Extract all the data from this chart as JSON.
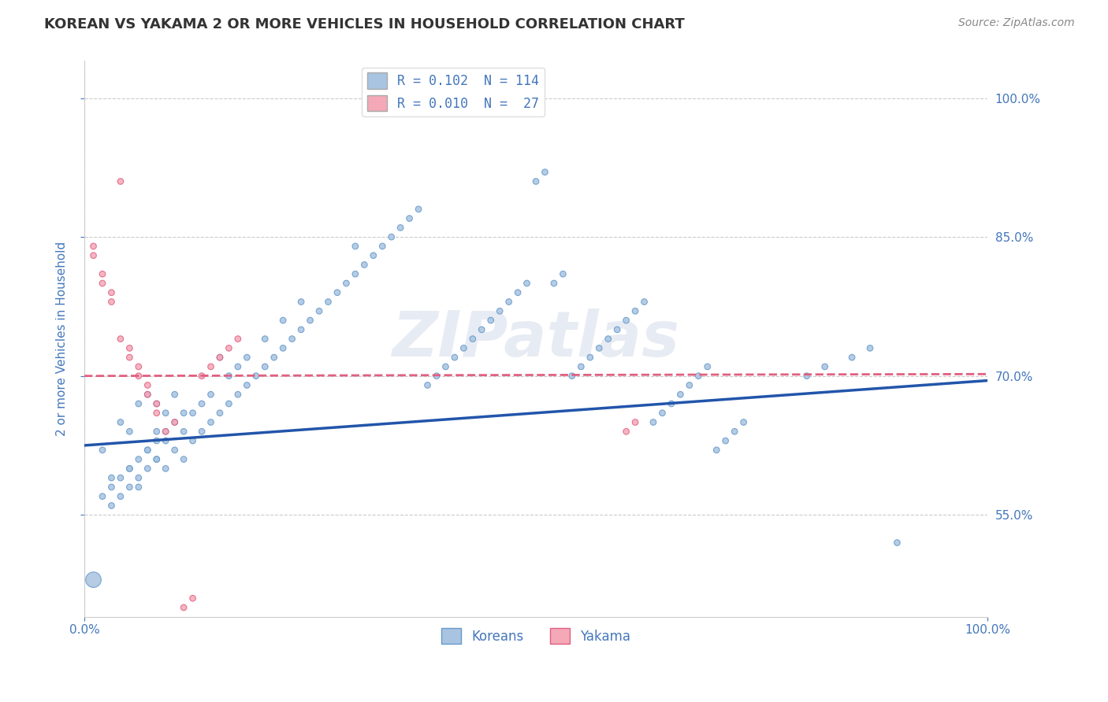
{
  "title": "KOREAN VS YAKAMA 2 OR MORE VEHICLES IN HOUSEHOLD CORRELATION CHART",
  "source": "Source: ZipAtlas.com",
  "ylabel": "2 or more Vehicles in Household",
  "xlim": [
    0.0,
    1.0
  ],
  "ylim": [
    0.44,
    1.04
  ],
  "yticks": [
    0.55,
    0.7,
    0.85,
    1.0
  ],
  "ytick_labels": [
    "55.0%",
    "70.0%",
    "85.0%",
    "100.0%"
  ],
  "legend_entries": [
    {
      "label": "R = 0.102  N = 114",
      "color": "#a8c4e0"
    },
    {
      "label": "R = 0.010  N =  27",
      "color": "#f4a8b8"
    }
  ],
  "watermark": "ZIPatlas",
  "korean_scatter": {
    "color": "#a8c4e0",
    "edge_color": "#6699cc",
    "x": [
      0.02,
      0.03,
      0.04,
      0.05,
      0.05,
      0.06,
      0.06,
      0.07,
      0.07,
      0.08,
      0.08,
      0.08,
      0.09,
      0.09,
      0.09,
      0.1,
      0.1,
      0.11,
      0.11,
      0.12,
      0.12,
      0.13,
      0.13,
      0.14,
      0.14,
      0.15,
      0.15,
      0.16,
      0.16,
      0.17,
      0.17,
      0.18,
      0.18,
      0.19,
      0.2,
      0.2,
      0.21,
      0.22,
      0.22,
      0.23,
      0.24,
      0.24,
      0.25,
      0.26,
      0.27,
      0.28,
      0.29,
      0.3,
      0.3,
      0.31,
      0.32,
      0.33,
      0.34,
      0.35,
      0.36,
      0.37,
      0.38,
      0.39,
      0.4,
      0.41,
      0.42,
      0.43,
      0.44,
      0.45,
      0.46,
      0.47,
      0.48,
      0.49,
      0.5,
      0.51,
      0.52,
      0.53,
      0.54,
      0.55,
      0.56,
      0.57,
      0.58,
      0.59,
      0.6,
      0.61,
      0.62,
      0.63,
      0.64,
      0.65,
      0.66,
      0.67,
      0.68,
      0.69,
      0.7,
      0.71,
      0.72,
      0.73,
      0.8,
      0.82,
      0.85,
      0.87,
      0.9,
      0.01,
      0.02,
      0.03,
      0.04,
      0.05,
      0.06,
      0.07,
      0.08,
      0.09,
      0.1,
      0.11,
      0.03,
      0.04,
      0.05,
      0.06,
      0.07,
      0.08
    ],
    "y": [
      0.62,
      0.59,
      0.65,
      0.6,
      0.64,
      0.58,
      0.67,
      0.62,
      0.68,
      0.61,
      0.64,
      0.67,
      0.6,
      0.63,
      0.66,
      0.62,
      0.68,
      0.61,
      0.64,
      0.63,
      0.66,
      0.64,
      0.67,
      0.65,
      0.68,
      0.66,
      0.72,
      0.67,
      0.7,
      0.68,
      0.71,
      0.69,
      0.72,
      0.7,
      0.71,
      0.74,
      0.72,
      0.73,
      0.76,
      0.74,
      0.75,
      0.78,
      0.76,
      0.77,
      0.78,
      0.79,
      0.8,
      0.81,
      0.84,
      0.82,
      0.83,
      0.84,
      0.85,
      0.86,
      0.87,
      0.88,
      0.69,
      0.7,
      0.71,
      0.72,
      0.73,
      0.74,
      0.75,
      0.76,
      0.77,
      0.78,
      0.79,
      0.8,
      0.91,
      0.92,
      0.8,
      0.81,
      0.7,
      0.71,
      0.72,
      0.73,
      0.74,
      0.75,
      0.76,
      0.77,
      0.78,
      0.65,
      0.66,
      0.67,
      0.68,
      0.69,
      0.7,
      0.71,
      0.62,
      0.63,
      0.64,
      0.65,
      0.7,
      0.71,
      0.72,
      0.73,
      0.52,
      0.48,
      0.57,
      0.58,
      0.59,
      0.6,
      0.61,
      0.62,
      0.63,
      0.64,
      0.65,
      0.66,
      0.56,
      0.57,
      0.58,
      0.59,
      0.6,
      0.61
    ],
    "sizes": [
      30,
      30,
      30,
      30,
      30,
      30,
      30,
      30,
      30,
      30,
      30,
      30,
      30,
      30,
      30,
      30,
      30,
      30,
      30,
      30,
      30,
      30,
      30,
      30,
      30,
      30,
      30,
      30,
      30,
      30,
      30,
      30,
      30,
      30,
      30,
      30,
      30,
      30,
      30,
      30,
      30,
      30,
      30,
      30,
      30,
      30,
      30,
      30,
      30,
      30,
      30,
      30,
      30,
      30,
      30,
      30,
      30,
      30,
      30,
      30,
      30,
      30,
      30,
      30,
      30,
      30,
      30,
      30,
      30,
      30,
      30,
      30,
      30,
      30,
      30,
      30,
      30,
      30,
      30,
      30,
      30,
      30,
      30,
      30,
      30,
      30,
      30,
      30,
      30,
      30,
      30,
      30,
      30,
      30,
      30,
      30,
      30,
      200,
      30,
      30,
      30,
      30,
      30,
      30,
      30,
      30,
      30,
      30,
      30,
      30,
      30,
      30,
      30,
      30
    ]
  },
  "yakama_scatter": {
    "color": "#f4a8b8",
    "edge_color": "#e06080",
    "x": [
      0.01,
      0.01,
      0.02,
      0.02,
      0.03,
      0.03,
      0.04,
      0.04,
      0.05,
      0.05,
      0.06,
      0.06,
      0.07,
      0.07,
      0.08,
      0.08,
      0.09,
      0.1,
      0.11,
      0.12,
      0.13,
      0.14,
      0.15,
      0.16,
      0.17,
      0.6,
      0.61
    ],
    "y": [
      0.83,
      0.84,
      0.8,
      0.81,
      0.78,
      0.79,
      0.74,
      0.91,
      0.72,
      0.73,
      0.7,
      0.71,
      0.68,
      0.69,
      0.66,
      0.67,
      0.64,
      0.65,
      0.45,
      0.46,
      0.7,
      0.71,
      0.72,
      0.73,
      0.74,
      0.64,
      0.65
    ],
    "sizes": [
      30,
      30,
      30,
      30,
      30,
      30,
      30,
      30,
      30,
      30,
      30,
      30,
      30,
      30,
      30,
      30,
      30,
      30,
      30,
      30,
      30,
      30,
      30,
      30,
      30,
      30,
      30
    ]
  },
  "korean_trendline": {
    "x": [
      0.0,
      1.0
    ],
    "y": [
      0.625,
      0.695
    ],
    "color": "#2255aa",
    "linewidth": 2.5,
    "linestyle": "solid"
  },
  "yakama_trendline": {
    "x": [
      0.0,
      1.0
    ],
    "y": [
      0.7,
      0.702
    ],
    "color": "#e06080",
    "linewidth": 2.0,
    "linestyle": "dashed"
  },
  "grid_color": "#cccccc",
  "bg_color": "#ffffff",
  "title_color": "#333333",
  "axis_color": "#4477bb",
  "watermark_color": "#d0d8e8",
  "watermark_alpha": 0.5,
  "bottom_legend": [
    {
      "label": "Koreans",
      "face": "#a8c4e0",
      "edge": "#6699cc"
    },
    {
      "label": "Yakama",
      "face": "#f4a8b8",
      "edge": "#e06080"
    }
  ]
}
